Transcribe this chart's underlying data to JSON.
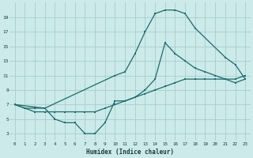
{
  "xlabel": "Humidex (Indice chaleur)",
  "bg_color": "#cceaea",
  "grid_color": "#aacccc",
  "line_color": "#1a6b6b",
  "line1_x": [
    0,
    1,
    2,
    3,
    10,
    11,
    12,
    13,
    14,
    15,
    16,
    17,
    18,
    21,
    22,
    23
  ],
  "line1_y": [
    7,
    6.5,
    6.5,
    6.5,
    11,
    11.5,
    14,
    17,
    19.5,
    20,
    20,
    19.5,
    17.5,
    13.5,
    12.5,
    10.5
  ],
  "line2_x": [
    0,
    3,
    4,
    5,
    6,
    7,
    8,
    9,
    10,
    11,
    12,
    13,
    14,
    15,
    16,
    17,
    18,
    19,
    20,
    21,
    22,
    23
  ],
  "line2_y": [
    7,
    6.5,
    5.0,
    4.5,
    4.5,
    3.0,
    3.0,
    4.5,
    7.5,
    7.5,
    8.0,
    9.0,
    10.5,
    15.5,
    14.0,
    13.0,
    12.0,
    11.5,
    11.0,
    10.5,
    10.0,
    10.5
  ],
  "line3_x": [
    0,
    1,
    2,
    3,
    4,
    5,
    6,
    7,
    8,
    9,
    10,
    11,
    12,
    13,
    14,
    15,
    16,
    17,
    18,
    19,
    20,
    21,
    22,
    23
  ],
  "line3_y": [
    7,
    6.5,
    6.0,
    6.0,
    6.0,
    6.0,
    6.0,
    6.0,
    6.0,
    6.5,
    7.0,
    7.5,
    8.0,
    8.5,
    9.0,
    9.5,
    10.0,
    10.5,
    10.5,
    10.5,
    10.5,
    10.5,
    10.5,
    11.0
  ],
  "xlim": [
    -0.5,
    23.5
  ],
  "ylim": [
    2,
    21
  ],
  "xticks": [
    0,
    1,
    2,
    3,
    4,
    5,
    6,
    7,
    8,
    9,
    10,
    11,
    12,
    13,
    14,
    15,
    16,
    17,
    18,
    19,
    20,
    21,
    22,
    23
  ],
  "yticks": [
    3,
    5,
    7,
    9,
    11,
    13,
    15,
    17,
    19
  ]
}
